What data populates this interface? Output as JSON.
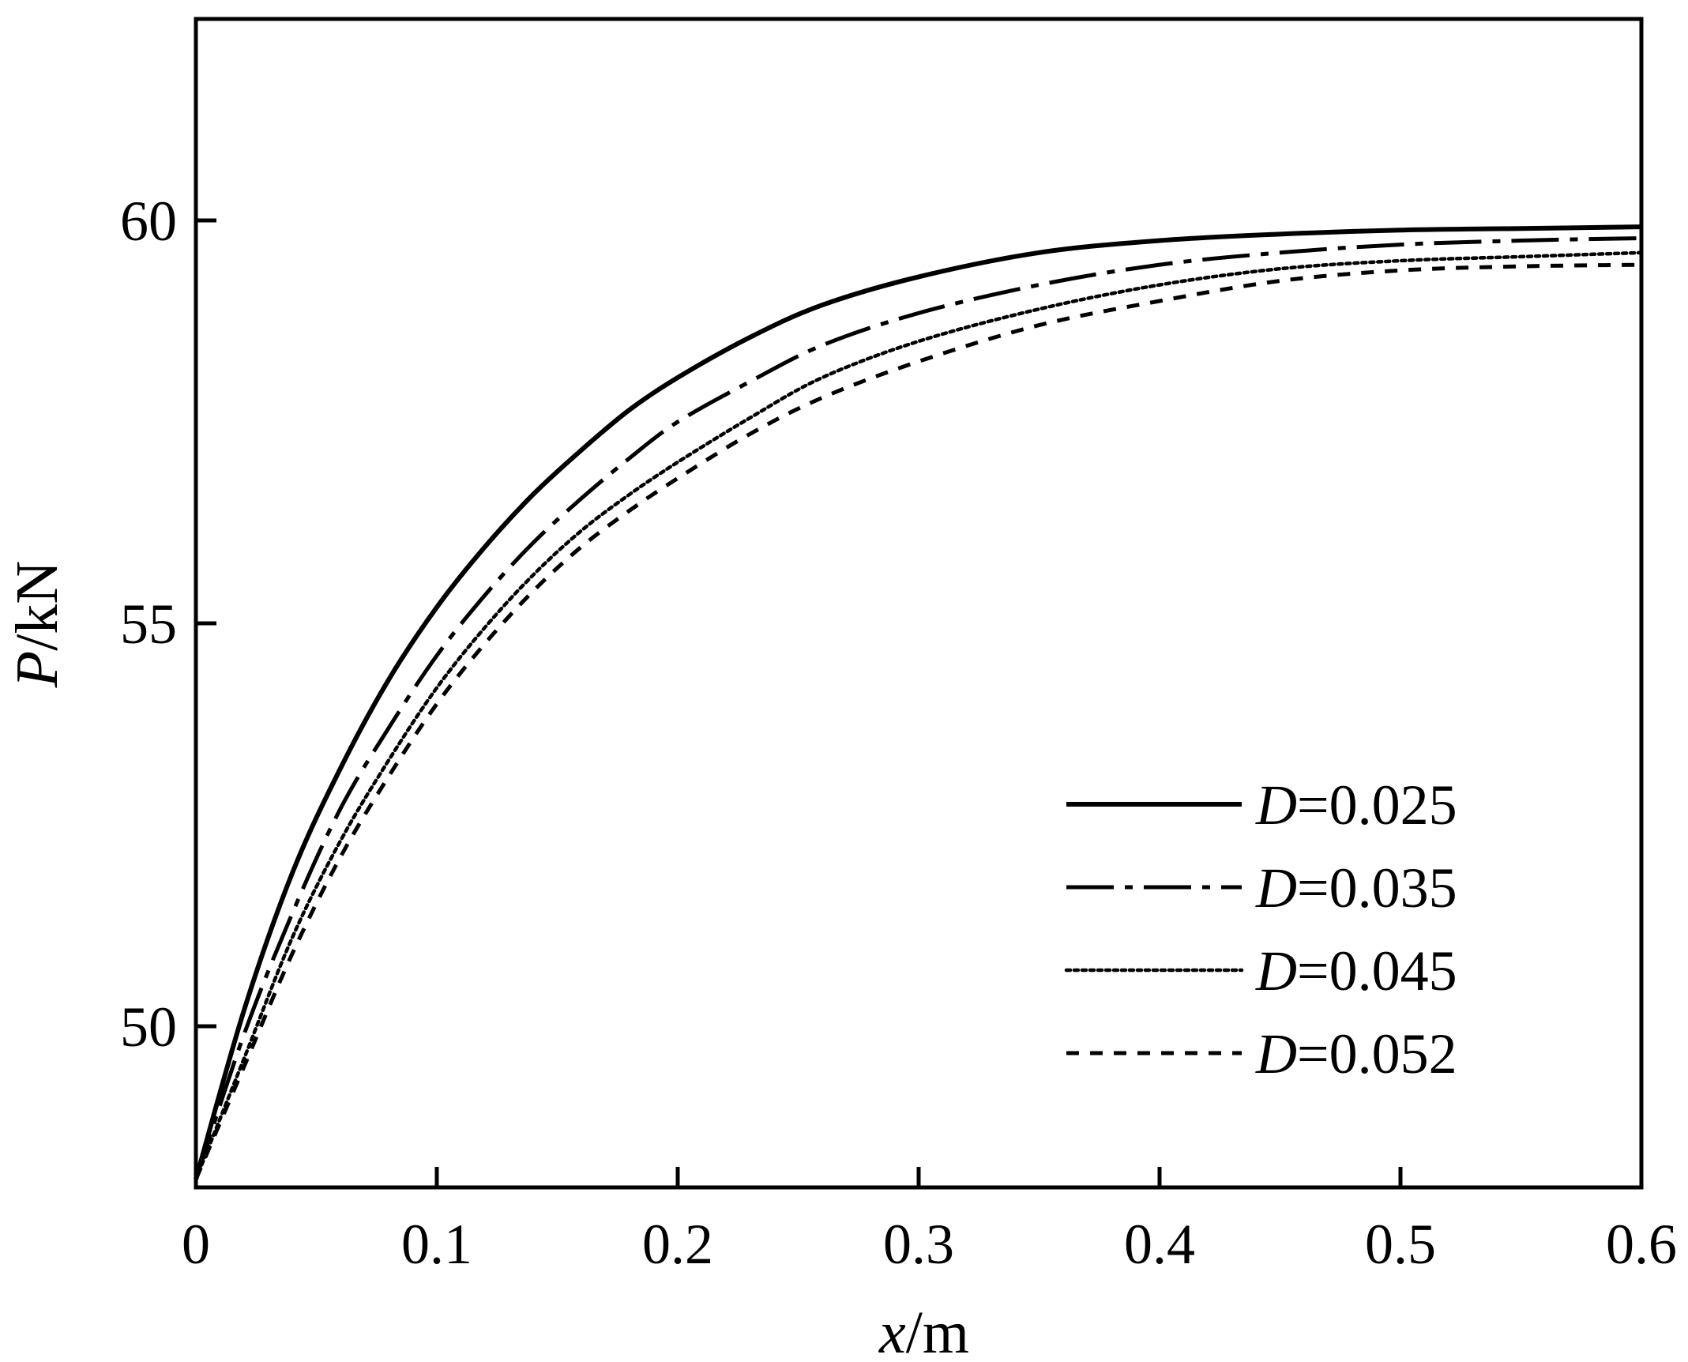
{
  "chart_data": {
    "type": "line",
    "xlabel": {
      "var": "x",
      "unit": "/m"
    },
    "ylabel": {
      "var": "P",
      "unit": "/kN"
    },
    "xlim": [
      0,
      0.6
    ],
    "ylim": [
      48,
      62.5
    ],
    "xticks": [
      0,
      0.1,
      0.2,
      0.3,
      0.4,
      0.5,
      0.6
    ],
    "xtick_labels": [
      "0",
      "0.1",
      "0.2",
      "0.3",
      "0.4",
      "0.5",
      "0.6"
    ],
    "yticks": [
      50,
      55,
      60
    ],
    "ytick_labels": [
      "50",
      "55",
      "60"
    ],
    "grid": false,
    "legend_position": "lower-right",
    "series": [
      {
        "name": "0.025",
        "legend_var": "D",
        "legend_eq": "=",
        "style": "solid",
        "x": [
          0,
          0.02,
          0.04,
          0.06,
          0.08,
          0.1,
          0.12,
          0.14,
          0.16,
          0.18,
          0.2,
          0.23,
          0.26,
          0.3,
          0.35,
          0.4,
          0.45,
          0.5,
          0.55,
          0.6
        ],
        "y": [
          48.1,
          50.2,
          51.9,
          53.2,
          54.3,
          55.2,
          55.95,
          56.6,
          57.15,
          57.65,
          58.05,
          58.55,
          58.95,
          59.3,
          59.6,
          59.75,
          59.83,
          59.88,
          59.9,
          59.92
        ]
      },
      {
        "name": "0.035",
        "legend_var": "D",
        "legend_eq": "=",
        "style": "dashdot",
        "x": [
          0,
          0.02,
          0.04,
          0.06,
          0.08,
          0.1,
          0.12,
          0.14,
          0.16,
          0.18,
          0.2,
          0.23,
          0.26,
          0.3,
          0.35,
          0.4,
          0.45,
          0.5,
          0.55,
          0.6
        ],
        "y": [
          48.1,
          49.9,
          51.4,
          52.7,
          53.7,
          54.6,
          55.35,
          56.0,
          56.55,
          57.05,
          57.5,
          58.0,
          58.45,
          58.85,
          59.2,
          59.45,
          59.6,
          59.7,
          59.75,
          59.78
        ]
      },
      {
        "name": "0.045",
        "legend_var": "D",
        "legend_eq": "=",
        "style": "dotted",
        "x": [
          0,
          0.02,
          0.04,
          0.06,
          0.08,
          0.1,
          0.12,
          0.14,
          0.16,
          0.18,
          0.2,
          0.23,
          0.26,
          0.3,
          0.35,
          0.4,
          0.45,
          0.5,
          0.55,
          0.6
        ],
        "y": [
          48.1,
          49.6,
          51.1,
          52.3,
          53.3,
          54.2,
          54.95,
          55.6,
          56.15,
          56.6,
          57.0,
          57.55,
          58.05,
          58.5,
          58.9,
          59.2,
          59.4,
          59.5,
          59.55,
          59.6
        ]
      },
      {
        "name": "0.052",
        "legend_var": "D",
        "legend_eq": "=",
        "style": "dashed",
        "x": [
          0,
          0.02,
          0.04,
          0.06,
          0.08,
          0.1,
          0.12,
          0.14,
          0.16,
          0.18,
          0.2,
          0.23,
          0.26,
          0.3,
          0.35,
          0.4,
          0.45,
          0.5,
          0.55,
          0.6
        ],
        "y": [
          48.1,
          49.5,
          50.9,
          52.1,
          53.1,
          54.0,
          54.75,
          55.4,
          55.95,
          56.4,
          56.8,
          57.35,
          57.8,
          58.25,
          58.7,
          59.0,
          59.25,
          59.38,
          59.43,
          59.45
        ]
      }
    ]
  }
}
